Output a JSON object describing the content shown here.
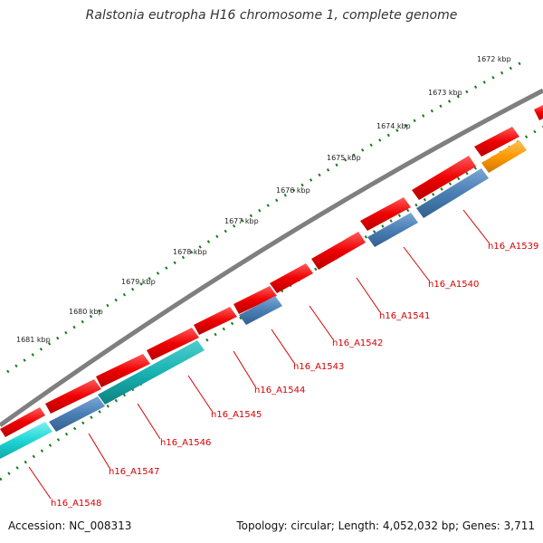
{
  "title": "Ralstonia eutropha H16 chromosome 1, complete genome",
  "footer": {
    "accession": "Accession: NC_008313",
    "summary": "Topology: circular; Length: 4,052,032 bp; Genes: 3,711"
  },
  "colors": {
    "backbone": "#7f7f7f",
    "tick": "#1a7a1a",
    "forward_gene": "#ee0000",
    "reverse_blue": "#4a7fb5",
    "reverse_cyan": "#1fd6d6",
    "reverse_teal": "#19b3b3",
    "reverse_orange": "#ff9900",
    "label": "#d40000"
  },
  "axis": {
    "unit": "kbp",
    "labels": [
      "1672 kbp",
      "1673 kbp",
      "1674 kbp",
      "1675 kbp",
      "1676 kbp",
      "1677 kbp",
      "1678 kbp",
      "1679 kbp",
      "1680 kbp",
      "1681 kbp"
    ]
  },
  "genes": [
    {
      "name": "h16_A1539",
      "strand": "reverse",
      "color": "orange"
    },
    {
      "name": "h16_A1540",
      "strand": "reverse",
      "color": "blue"
    },
    {
      "name": "h16_A1541",
      "strand": "reverse",
      "color": "blue"
    },
    {
      "name": "h16_A1542",
      "strand": "forward",
      "color": "red"
    },
    {
      "name": "h16_A1543",
      "strand": "reverse",
      "color": "blue"
    },
    {
      "name": "h16_A1544",
      "strand": "forward",
      "color": "red"
    },
    {
      "name": "h16_A1545",
      "strand": "reverse",
      "color": "teal"
    },
    {
      "name": "h16_A1546",
      "strand": "reverse",
      "color": "blue"
    },
    {
      "name": "h16_A1547",
      "strand": "reverse",
      "color": "cyan"
    },
    {
      "name": "h16_A1548",
      "strand": "reverse",
      "color": "cyan"
    }
  ]
}
